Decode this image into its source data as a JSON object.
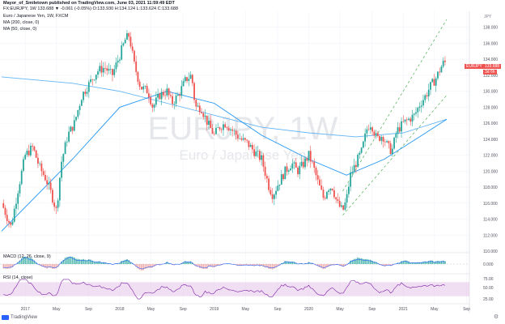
{
  "header": {
    "publisher_line": "Mayor_of_Smiletown published on TradingView.com, June 03, 2021 11:59:49 EDT",
    "symbol_line": "FX:EURJPY, 1W  133.688 ▼ -0.061 (-0.05%) O:133.930 H:134.124 L:133.624 C:133.688",
    "indicators": [
      "Euro / Japanese Yen, 1W, FXCM",
      "MA (200, close, 0)",
      "MA (50, close, 0)"
    ]
  },
  "watermark": {
    "symbol": "EURJPY, 1W",
    "name": "Euro / Japanese Yen"
  },
  "price_scale": {
    "currency": "JPY",
    "ticks": [
      "138.000",
      "136.000",
      "134.000",
      "132.000",
      "130.000",
      "128.000",
      "126.000",
      "124.000",
      "122.000",
      "120.000",
      "118.000",
      "116.000",
      "114.000",
      "112.000",
      "110.000"
    ]
  },
  "price_tag": {
    "symbol": "EURJPY",
    "value": "133.688",
    "countdown": "3d 6h"
  },
  "macd_pane": {
    "label": "MACD (12, 26, close, 9)",
    "tick": "0.000"
  },
  "rsi_pane": {
    "label": "RSI (14, close)",
    "ticks": [
      "75.00",
      "50.00",
      "25.00"
    ]
  },
  "time_axis": [
    "2017",
    "May",
    "Sep",
    "2018",
    "May",
    "Sep",
    "2019",
    "May",
    "Sep",
    "2020",
    "May",
    "Sep",
    "2021",
    "May",
    "Sep"
  ],
  "branding": {
    "logo_text": "TradingView"
  },
  "colors": {
    "up": "#26a69a",
    "down": "#ef5350",
    "ma50": "#2196f3",
    "ma200": "#64b5f6",
    "channel": "#4caf50",
    "rsi_band": "#e1bee7",
    "rsi_line": "#7b1fa2",
    "tag_bg": "#ef5350"
  },
  "chart_data": {
    "type": "candlestick",
    "title": "Euro / Japanese Yen, 1W",
    "ylim": [
      110,
      140
    ],
    "price_path": [
      [
        2016.75,
        116.0
      ],
      [
        2016.85,
        113.0
      ],
      [
        2016.92,
        117.5
      ],
      [
        2017.0,
        122.0
      ],
      [
        2017.08,
        123.0
      ],
      [
        2017.15,
        120.5
      ],
      [
        2017.22,
        119.0
      ],
      [
        2017.28,
        117.0
      ],
      [
        2017.33,
        115.0
      ],
      [
        2017.38,
        121.0
      ],
      [
        2017.45,
        124.5
      ],
      [
        2017.52,
        126.0
      ],
      [
        2017.6,
        129.5
      ],
      [
        2017.68,
        131.0
      ],
      [
        2017.76,
        132.5
      ],
      [
        2017.84,
        133.0
      ],
      [
        2017.92,
        132.0
      ],
      [
        2018.0,
        134.5
      ],
      [
        2018.06,
        136.5
      ],
      [
        2018.1,
        137.0
      ],
      [
        2018.15,
        133.5
      ],
      [
        2018.22,
        130.5
      ],
      [
        2018.3,
        130.0
      ],
      [
        2018.35,
        128.0
      ],
      [
        2018.42,
        129.5
      ],
      [
        2018.5,
        130.0
      ],
      [
        2018.55,
        128.5
      ],
      [
        2018.62,
        129.5
      ],
      [
        2018.7,
        131.5
      ],
      [
        2018.76,
        132.0
      ],
      [
        2018.8,
        128.0
      ],
      [
        2018.86,
        128.0
      ],
      [
        2018.93,
        126.0
      ],
      [
        2019.0,
        124.5
      ],
      [
        2019.05,
        125.5
      ],
      [
        2019.12,
        126.0
      ],
      [
        2019.2,
        125.0
      ],
      [
        2019.28,
        124.0
      ],
      [
        2019.35,
        123.5
      ],
      [
        2019.42,
        122.5
      ],
      [
        2019.5,
        121.5
      ],
      [
        2019.58,
        118.0
      ],
      [
        2019.62,
        117.0
      ],
      [
        2019.68,
        118.5
      ],
      [
        2019.75,
        120.0
      ],
      [
        2019.82,
        121.0
      ],
      [
        2019.88,
        120.0
      ],
      [
        2019.95,
        121.0
      ],
      [
        2020.0,
        122.0
      ],
      [
        2020.05,
        120.5
      ],
      [
        2020.1,
        118.5
      ],
      [
        2020.16,
        116.5
      ],
      [
        2020.2,
        118.0
      ],
      [
        2020.25,
        118.0
      ],
      [
        2020.3,
        116.0
      ],
      [
        2020.36,
        115.0
      ],
      [
        2020.4,
        116.5
      ],
      [
        2020.44,
        119.5
      ],
      [
        2020.5,
        121.0
      ],
      [
        2020.56,
        122.5
      ],
      [
        2020.62,
        125.5
      ],
      [
        2020.66,
        126.0
      ],
      [
        2020.72,
        124.0
      ],
      [
        2020.78,
        124.5
      ],
      [
        2020.84,
        123.0
      ],
      [
        2020.88,
        122.5
      ],
      [
        2020.93,
        125.0
      ],
      [
        2021.0,
        126.0
      ],
      [
        2021.06,
        126.5
      ],
      [
        2021.12,
        127.0
      ],
      [
        2021.18,
        128.5
      ],
      [
        2021.24,
        129.5
      ],
      [
        2021.28,
        130.5
      ],
      [
        2021.34,
        131.5
      ],
      [
        2021.38,
        132.5
      ],
      [
        2021.42,
        133.5
      ],
      [
        2021.46,
        133.7
      ]
    ],
    "ma200": [
      [
        2016.75,
        131.8
      ],
      [
        2017.5,
        131.0
      ],
      [
        2018.0,
        130.0
      ],
      [
        2018.5,
        128.5
      ],
      [
        2019.0,
        127.0
      ],
      [
        2019.5,
        125.5
      ],
      [
        2020.0,
        124.8
      ],
      [
        2020.5,
        124.3
      ],
      [
        2021.0,
        124.8
      ],
      [
        2021.46,
        126.5
      ]
    ],
    "ma50": [
      [
        2016.75,
        112.5
      ],
      [
        2017.0,
        115.5
      ],
      [
        2017.5,
        121.5
      ],
      [
        2018.0,
        128.0
      ],
      [
        2018.5,
        130.0
      ],
      [
        2019.0,
        128.5
      ],
      [
        2019.5,
        124.5
      ],
      [
        2020.0,
        121.5
      ],
      [
        2020.4,
        119.5
      ],
      [
        2020.8,
        121.5
      ],
      [
        2021.2,
        124.5
      ],
      [
        2021.46,
        126.5
      ]
    ],
    "channel_upper": [
      [
        2020.36,
        117.5
      ],
      [
        2021.46,
        139.0
      ]
    ],
    "channel_lower": [
      [
        2020.36,
        114.5
      ],
      [
        2021.46,
        129.5
      ]
    ]
  }
}
